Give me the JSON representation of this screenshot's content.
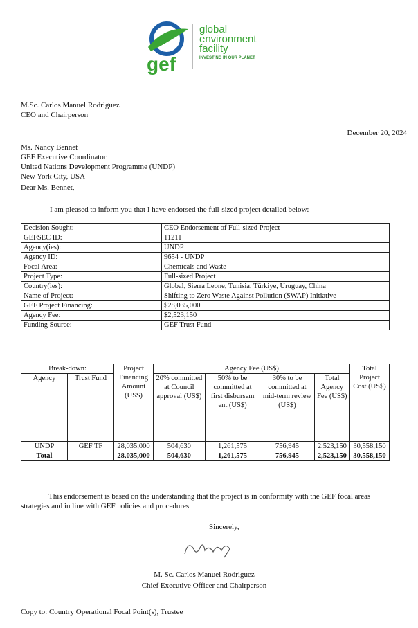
{
  "logo": {
    "mark": "gef",
    "line1": "global",
    "line2": "environment",
    "line3": "facility",
    "tagline": "INVESTING IN OUR PLANET",
    "colors": {
      "green": "#3aa535",
      "blue": "#1d5fa8"
    }
  },
  "sender": {
    "name": "M.Sc. Carlos Manuel Rodriguez",
    "title": "CEO and Chairperson"
  },
  "date": "December 20, 2024",
  "recipient": [
    "Ms. Nancy Bennet",
    "GEF Executive Coordinator",
    "United Nations Development Programme (UNDP)",
    "New York City, USA"
  ],
  "salutation": "Dear Ms. Bennet,",
  "intro": "I am pleased to inform you that I have endorsed the full-sized project detailed below:",
  "details": [
    [
      "Decision Sought:",
      "CEO Endorsement of Full-sized Project"
    ],
    [
      "GEFSEC ID:",
      "11211"
    ],
    [
      "Agency(ies):",
      "UNDP"
    ],
    [
      "Agency ID:",
      "9654 - UNDP"
    ],
    [
      "Focal Area:",
      "Chemicals and Waste"
    ],
    [
      "Project Type:",
      "Full-sized Project"
    ],
    [
      "Country(ies):",
      "Global, Sierra Leone, Tunisia, Türkiye, Uruguay, China"
    ],
    [
      "Name of Project:",
      "Shifting to Zero Waste Against Pollution (SWAP) Initiative"
    ],
    [
      "GEF Project Financing:",
      "$28,035,000"
    ],
    [
      "Agency Fee:",
      "$2,523,150"
    ],
    [
      "Funding Source:",
      "GEF Trust Fund"
    ]
  ],
  "breakdown": {
    "h_breakdown": "Break-down:",
    "h_financing": "Project Financing Amount (US$)",
    "h_fee": "Agency Fee (US$)",
    "h_total": "Total Project Cost (US$)",
    "h_agency": "Agency",
    "h_fund": "Trust Fund",
    "h_20": "20% committed at Council approval (US$)",
    "h_50": "50% to be committed at first disbursem ent (US$)",
    "h_30": "30% to be committed at mid-term review (US$)",
    "h_fee_total": "Total Agency Fee (US$)",
    "rows": [
      [
        "UNDP",
        "GEF TF",
        "28,035,000",
        "504,630",
        "1,261,575",
        "756,945",
        "2,523,150",
        "30,558,150"
      ],
      [
        "Total",
        "",
        "28,035,000",
        "504,630",
        "1,261,575",
        "756,945",
        "2,523,150",
        "30,558,150"
      ]
    ]
  },
  "conclusion": "This endorsement is based on the understanding that the project is in conformity with the GEF focal areas strategies and in line with GEF policies and procedures.",
  "closing": "Sincerely,",
  "signature": "CRodriguez",
  "signer": {
    "name": "M. Sc. Carlos Manuel Rodriguez",
    "title": "Chief Executive Officer and Chairperson"
  },
  "copy": "Copy to: Country Operational Focal Point(s), Trustee"
}
